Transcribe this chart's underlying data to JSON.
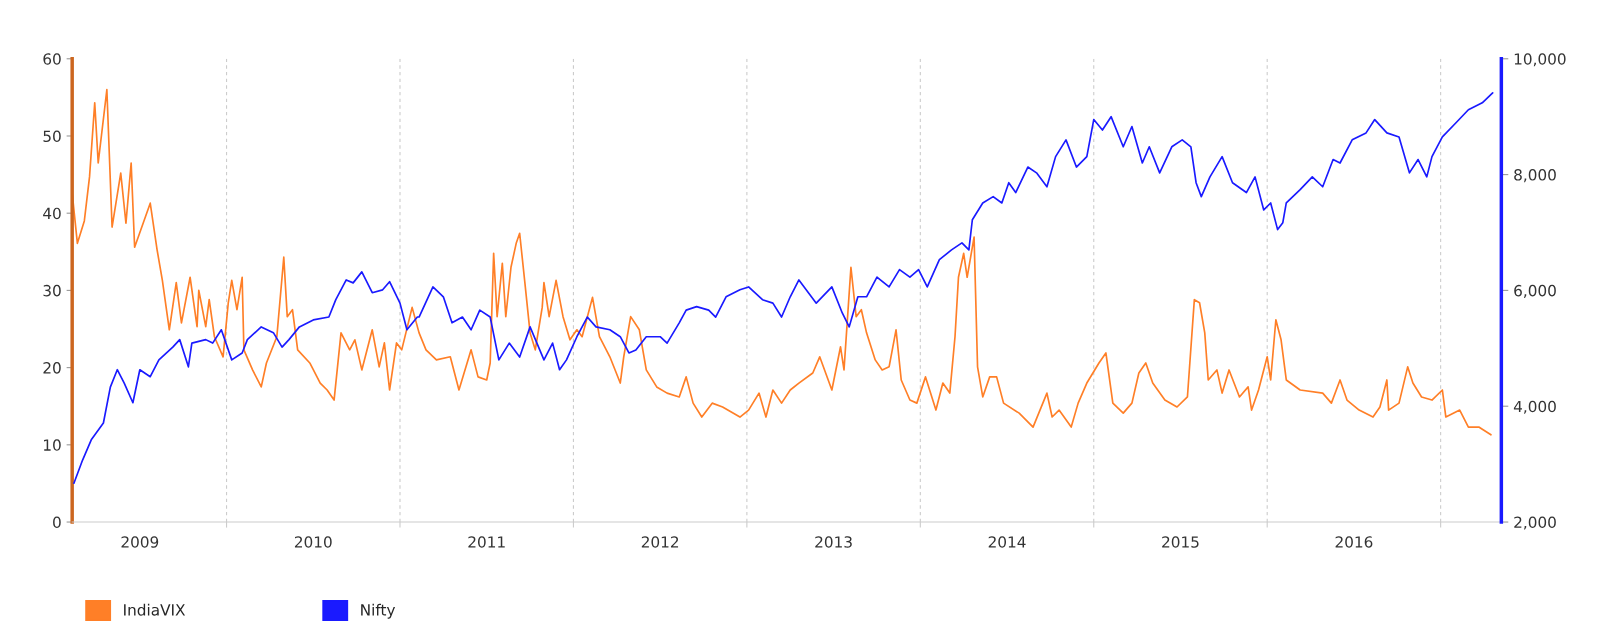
{
  "chart_data": {
    "type": "line",
    "xlim": [
      2009.11,
      2017.35
    ],
    "xticks": [
      {
        "value": 2010,
        "label": null
      },
      {
        "value": 2011,
        "label": null
      },
      {
        "value": 2012,
        "label": null
      },
      {
        "value": 2013,
        "label": null
      },
      {
        "value": 2014,
        "label": null
      },
      {
        "value": 2015,
        "label": null
      },
      {
        "value": 2016,
        "label": null
      },
      {
        "value": 2017,
        "label": null
      },
      {
        "value": 2009.5,
        "label": "2009"
      },
      {
        "value": 2010.5,
        "label": "2010"
      },
      {
        "value": 2011.5,
        "label": "2011"
      },
      {
        "value": 2012.5,
        "label": "2012"
      },
      {
        "value": 2013.5,
        "label": "2013"
      },
      {
        "value": 2014.5,
        "label": "2014"
      },
      {
        "value": 2015.5,
        "label": "2015"
      },
      {
        "value": 2016.5,
        "label": "2016"
      }
    ],
    "ylim": [
      0,
      60
    ],
    "yticks": [
      0,
      10,
      20,
      30,
      40,
      50,
      60
    ],
    "y2lim": [
      2000,
      10000
    ],
    "y2ticks": [
      {
        "value": 2000,
        "label": "2,000"
      },
      {
        "value": 4000,
        "label": "4,000"
      },
      {
        "value": 6000,
        "label": "6,000"
      },
      {
        "value": 8000,
        "label": "8,000"
      },
      {
        "value": 10000,
        "label": "10,000"
      }
    ],
    "grid": "x",
    "legend": "bottom left",
    "series": [
      {
        "name": "IndiaVIX",
        "color": "#ff7f27",
        "x": [
          2009.11,
          2009.14,
          2009.18,
          2009.21,
          2009.24,
          2009.26,
          2009.31,
          2009.34,
          2009.39,
          2009.42,
          2009.45,
          2009.47,
          2009.56,
          2009.6,
          2009.63,
          2009.67,
          2009.71,
          2009.74,
          2009.79,
          2009.83,
          2009.84,
          2009.88,
          2009.9,
          2009.93,
          2009.98,
          2010.01,
          2010.03,
          2010.06,
          2010.09,
          2010.1,
          2010.15,
          2010.2,
          2010.23,
          2010.29,
          2010.33,
          2010.35,
          2010.38,
          2010.41,
          2010.48,
          2010.54,
          2010.58,
          2010.62,
          2010.66,
          2010.71,
          2010.74,
          2010.78,
          2010.84,
          2010.88,
          2010.91,
          2010.94,
          2010.98,
          2011.01,
          2011.07,
          2011.11,
          2011.15,
          2011.21,
          2011.29,
          2011.34,
          2011.41,
          2011.45,
          2011.5,
          2011.52,
          2011.54,
          2011.56,
          2011.59,
          2011.61,
          2011.64,
          2011.67,
          2011.69,
          2011.72,
          2011.75,
          2011.78,
          2011.82,
          2011.83,
          2011.86,
          2011.9,
          2011.94,
          2011.98,
          2012.02,
          2012.05,
          2012.11,
          2012.15,
          2012.21,
          2012.27,
          2012.29,
          2012.33,
          2012.38,
          2012.42,
          2012.48,
          2012.54,
          2012.61,
          2012.65,
          2012.69,
          2012.74,
          2012.8,
          2012.86,
          2012.96,
          2013.01,
          2013.07,
          2013.11,
          2013.15,
          2013.2,
          2013.25,
          2013.3,
          2013.38,
          2013.42,
          2013.49,
          2013.54,
          2013.56,
          2013.6,
          2013.63,
          2013.66,
          2013.69,
          2013.74,
          2013.78,
          2013.82,
          2013.86,
          2013.89,
          2013.94,
          2013.98,
          2014.03,
          2014.09,
          2014.13,
          2014.17,
          2014.2,
          2014.22,
          2014.25,
          2014.27,
          2014.31,
          2014.33,
          2014.36,
          2014.4,
          2014.44,
          2014.48,
          2014.57,
          2014.65,
          2014.73,
          2014.76,
          2014.8,
          2014.87,
          2014.91,
          2014.96,
          2015.03,
          2015.07,
          2015.11,
          2015.17,
          2015.22,
          2015.26,
          2015.3,
          2015.34,
          2015.41,
          2015.48,
          2015.54,
          2015.58,
          2015.61,
          2015.64,
          2015.66,
          2015.71,
          2015.74,
          2015.78,
          2015.84,
          2015.89,
          2015.91,
          2015.95,
          2016.0,
          2016.02,
          2016.05,
          2016.08,
          2016.11,
          2016.19,
          2016.32,
          2016.37,
          2016.42,
          2016.46,
          2016.53,
          2016.61,
          2016.65,
          2016.69,
          2016.7,
          2016.76,
          2016.81,
          2016.84,
          2016.89,
          2016.95,
          2017.01,
          2017.03,
          2017.11,
          2017.16,
          2017.22,
          2017.29
        ],
        "values": [
          42.6,
          36.1,
          39,
          44.7,
          54.3,
          46.5,
          56,
          38.2,
          45.2,
          38.7,
          46.5,
          35.6,
          41.3,
          35.2,
          31.3,
          24.9,
          31,
          25.8,
          31.7,
          25.3,
          30,
          25.3,
          28.8,
          24,
          21.4,
          28.4,
          31.3,
          27.5,
          31.7,
          22.3,
          19.7,
          17.5,
          20.6,
          24,
          34.3,
          26.6,
          27.5,
          22.3,
          20.6,
          18,
          17.1,
          15.8,
          24.5,
          22.3,
          23.6,
          19.7,
          24.9,
          20.1,
          23.2,
          17.1,
          23.2,
          22.3,
          27.8,
          24.5,
          22.3,
          21,
          21.4,
          17.1,
          22.3,
          18.8,
          18.4,
          20.6,
          34.8,
          26.6,
          33.5,
          26.6,
          33,
          36.1,
          37.4,
          31,
          24.5,
          22.3,
          27.8,
          31,
          26.6,
          31.3,
          26.6,
          23.6,
          24.9,
          24,
          29.1,
          24,
          21.4,
          18,
          21.4,
          26.6,
          24.9,
          19.7,
          17.5,
          16.7,
          16.2,
          18.8,
          15.4,
          13.6,
          15.4,
          14.9,
          13.6,
          14.5,
          16.7,
          13.6,
          17.1,
          15.4,
          17.1,
          18,
          19.3,
          21.4,
          17.1,
          22.7,
          19.7,
          33,
          26.6,
          27.5,
          24.5,
          21,
          19.7,
          20.1,
          24.9,
          18.4,
          15.8,
          15.4,
          18.8,
          14.5,
          18,
          16.7,
          24,
          31.7,
          34.8,
          31.7,
          36.9,
          20.1,
          16.2,
          18.8,
          18.8,
          15.4,
          14.1,
          12.3,
          16.7,
          13.6,
          14.5,
          12.3,
          15.4,
          18,
          20.6,
          21.9,
          15.4,
          14.1,
          15.4,
          19.3,
          20.6,
          18,
          15.8,
          14.9,
          16.2,
          28.8,
          28.4,
          24.5,
          18.4,
          19.7,
          16.7,
          19.7,
          16.2,
          17.5,
          14.5,
          17.1,
          21.4,
          18.4,
          26.2,
          23.6,
          18.4,
          17.1,
          16.7,
          15.4,
          18.4,
          15.8,
          14.5,
          13.6,
          14.9,
          18.4,
          14.5,
          15.4,
          20.1,
          18,
          16.2,
          15.8,
          17.1,
          13.6,
          14.5,
          12.3,
          12.3,
          11.3
        ]
      },
      {
        "name": "Nifty",
        "color": "#1a1aff",
        "axis": "y2",
        "x": [
          2009.12,
          2009.17,
          2009.22,
          2009.29,
          2009.33,
          2009.37,
          2009.41,
          2009.46,
          2009.5,
          2009.56,
          2009.61,
          2009.69,
          2009.73,
          2009.78,
          2009.8,
          2009.88,
          2009.92,
          2009.97,
          2010.03,
          2010.09,
          2010.12,
          2010.2,
          2010.27,
          2010.32,
          2010.36,
          2010.42,
          2010.5,
          2010.59,
          2010.63,
          2010.69,
          2010.73,
          2010.78,
          2010.84,
          2010.9,
          2010.94,
          2011.0,
          2011.04,
          2011.1,
          2011.11,
          2011.19,
          2011.25,
          2011.3,
          2011.36,
          2011.41,
          2011.46,
          2011.52,
          2011.57,
          2011.63,
          2011.69,
          2011.75,
          2011.83,
          2011.88,
          2011.92,
          2011.96,
          2012.02,
          2012.08,
          2012.13,
          2012.21,
          2012.27,
          2012.32,
          2012.36,
          2012.42,
          2012.5,
          2012.54,
          2012.61,
          2012.65,
          2012.71,
          2012.78,
          2012.82,
          2012.88,
          2012.96,
          2013.01,
          2013.09,
          2013.15,
          2013.2,
          2013.25,
          2013.3,
          2013.4,
          2013.49,
          2013.55,
          2013.59,
          2013.64,
          2013.69,
          2013.75,
          2013.82,
          2013.88,
          2013.94,
          2013.99,
          2014.04,
          2014.11,
          2014.18,
          2014.24,
          2014.28,
          2014.3,
          2014.36,
          2014.42,
          2014.47,
          2014.51,
          2014.55,
          2014.62,
          2014.67,
          2014.73,
          2014.78,
          2014.84,
          2014.9,
          2014.96,
          2015.0,
          2015.05,
          2015.1,
          2015.17,
          2015.22,
          2015.28,
          2015.32,
          2015.38,
          2015.45,
          2015.51,
          2015.56,
          2015.59,
          2015.62,
          2015.67,
          2015.74,
          2015.8,
          2015.88,
          2015.93,
          2015.98,
          2016.02,
          2016.06,
          2016.09,
          2016.11,
          2016.19,
          2016.26,
          2016.32,
          2016.38,
          2016.42,
          2016.49,
          2016.57,
          2016.62,
          2016.69,
          2016.76,
          2016.82,
          2016.87,
          2016.92,
          2016.95,
          2017.01,
          2017.09,
          2017.16,
          2017.24,
          2017.3
        ],
        "values": [
          2670,
          3070,
          3420,
          3710,
          4330,
          4630,
          4400,
          4060,
          4630,
          4510,
          4800,
          5020,
          5150,
          4680,
          5090,
          5150,
          5090,
          5320,
          4800,
          4920,
          5150,
          5370,
          5270,
          5020,
          5150,
          5370,
          5490,
          5540,
          5840,
          6180,
          6130,
          6320,
          5960,
          6010,
          6150,
          5780,
          5320,
          5540,
          5540,
          6060,
          5890,
          5440,
          5540,
          5320,
          5660,
          5540,
          4800,
          5090,
          4850,
          5370,
          4800,
          5090,
          4630,
          4800,
          5200,
          5540,
          5370,
          5320,
          5200,
          4920,
          4970,
          5200,
          5200,
          5090,
          5440,
          5660,
          5720,
          5660,
          5540,
          5890,
          6010,
          6060,
          5840,
          5780,
          5540,
          5890,
          6180,
          5780,
          6060,
          5610,
          5370,
          5890,
          5890,
          6230,
          6060,
          6360,
          6230,
          6360,
          6060,
          6530,
          6700,
          6820,
          6700,
          7220,
          7510,
          7620,
          7510,
          7860,
          7690,
          8130,
          8030,
          7790,
          8310,
          8600,
          8130,
          8310,
          8950,
          8770,
          9000,
          8480,
          8830,
          8200,
          8480,
          8030,
          8480,
          8600,
          8480,
          7860,
          7620,
          7960,
          8310,
          7860,
          7690,
          7960,
          7390,
          7510,
          7050,
          7170,
          7510,
          7740,
          7960,
          7790,
          8260,
          8200,
          8600,
          8720,
          8950,
          8720,
          8650,
          8030,
          8260,
          7960,
          8310,
          8650,
          8900,
          9120,
          9240,
          9410
        ]
      }
    ]
  }
}
